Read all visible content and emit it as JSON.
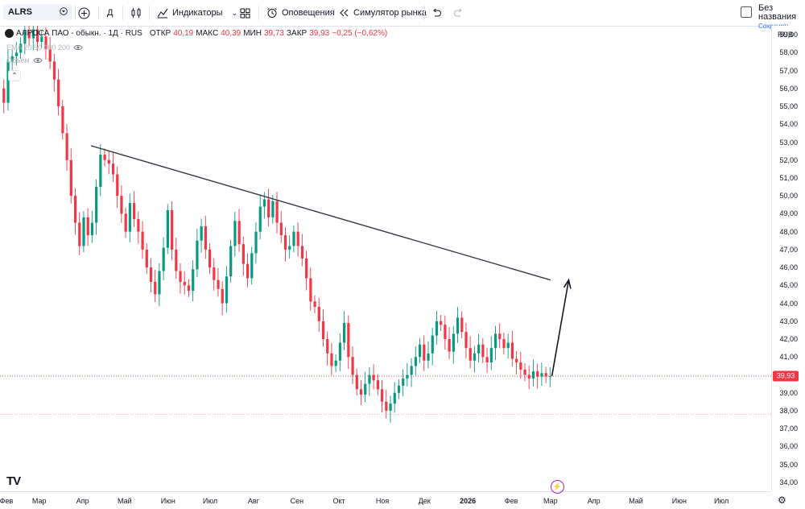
{
  "toolbar": {
    "symbol": "ALRS",
    "interval": "Д",
    "indicators_label": "Индикаторы",
    "alerts_label": "Оповещения",
    "replay_label": "Симулятор рынка",
    "layout_name": "Без названия",
    "save_status": "Сохранить"
  },
  "legend": {
    "title": "АЛРОСА ПАО - обыкн. · 1Д · RUS",
    "open_label": "ОТКР",
    "open": "40,19",
    "high_label": "МАКС",
    "high": "40,39",
    "low_label": "МИН",
    "low": "39,73",
    "close_label": "ЗАКР",
    "close": "39,93",
    "change": "−0,25 (−0,62%)",
    "ema_label": "EMA 20 50 100 200",
    "volume_label": "Объём"
  },
  "colors": {
    "up": "#089981",
    "down": "#f23645",
    "trendline": "#363a45",
    "price_line": "#f23645"
  },
  "chart_data": {
    "type": "candlestick",
    "currency": "RUB",
    "last_price": 39.93,
    "last_price_label": "39,93",
    "ylim": [
      33.5,
      59.5
    ],
    "y_ticks": [
      "34,00",
      "35,00",
      "36,00",
      "37,00",
      "38,00",
      "39,00",
      "40,00",
      "41,00",
      "42,00",
      "43,00",
      "44,00",
      "45,00",
      "46,00",
      "47,00",
      "48,00",
      "49,00",
      "50,00",
      "51,00",
      "52,00",
      "53,00",
      "54,00",
      "55,00",
      "56,00",
      "57,00",
      "58,00",
      "59,00"
    ],
    "x_ticks": [
      "Фев",
      "Мар",
      "Апр",
      "Май",
      "Июн",
      "Июл",
      "Авг",
      "Сен",
      "Окт",
      "Ноя",
      "Дек",
      "2026",
      "Фев",
      "Мар",
      "Апр",
      "Май",
      "Июн",
      "Июл"
    ],
    "x_ticks_bold": [
      false,
      false,
      false,
      false,
      false,
      false,
      false,
      false,
      false,
      false,
      false,
      true,
      false,
      false,
      false,
      false,
      false,
      false
    ],
    "x_tick_days": [
      0,
      28,
      59,
      89,
      120,
      150,
      181,
      212,
      242,
      273,
      303,
      334,
      365,
      393,
      424,
      454,
      485,
      515
    ],
    "last_day": 393,
    "close_series": [
      [
        0,
        56.0
      ],
      [
        3,
        55.2
      ],
      [
        6,
        57.5
      ],
      [
        9,
        57.8
      ],
      [
        12,
        58.0
      ],
      [
        15,
        58.5
      ],
      [
        18,
        59.2
      ],
      [
        21,
        58.8
      ],
      [
        24,
        59.3
      ],
      [
        27,
        58.6
      ],
      [
        30,
        58.9
      ],
      [
        33,
        58.2
      ],
      [
        36,
        57.5
      ],
      [
        39,
        56.5
      ],
      [
        42,
        55.0
      ],
      [
        45,
        53.5
      ],
      [
        48,
        52.0
      ],
      [
        51,
        50.0
      ],
      [
        54,
        48.5
      ],
      [
        57,
        47.2
      ],
      [
        60,
        48.8
      ],
      [
        63,
        47.8
      ],
      [
        66,
        48.5
      ],
      [
        69,
        50.5
      ],
      [
        72,
        52.3
      ],
      [
        75,
        52.0
      ],
      [
        78,
        51.8
      ],
      [
        81,
        51.2
      ],
      [
        84,
        50.0
      ],
      [
        87,
        49.0
      ],
      [
        90,
        48.0
      ],
      [
        93,
        49.6
      ],
      [
        96,
        48.7
      ],
      [
        99,
        48.0
      ],
      [
        102,
        47.0
      ],
      [
        105,
        46.0
      ],
      [
        108,
        45.2
      ],
      [
        111,
        44.5
      ],
      [
        114,
        45.8
      ],
      [
        117,
        47.1
      ],
      [
        120,
        49.2
      ],
      [
        123,
        47.0
      ],
      [
        126,
        45.8
      ],
      [
        129,
        45.2
      ],
      [
        132,
        45.0
      ],
      [
        135,
        44.7
      ],
      [
        138,
        45.9
      ],
      [
        141,
        47.5
      ],
      [
        144,
        48.3
      ],
      [
        147,
        47.0
      ],
      [
        150,
        46.0
      ],
      [
        153,
        45.3
      ],
      [
        156,
        44.8
      ],
      [
        159,
        44.0
      ],
      [
        162,
        45.5
      ],
      [
        165,
        47.2
      ],
      [
        168,
        48.6
      ],
      [
        171,
        47.3
      ],
      [
        174,
        46.2
      ],
      [
        177,
        45.4
      ],
      [
        180,
        46.8
      ],
      [
        183,
        48.0
      ],
      [
        186,
        49.4
      ],
      [
        189,
        49.8
      ],
      [
        192,
        48.8
      ],
      [
        195,
        49.7
      ],
      [
        198,
        48.5
      ],
      [
        201,
        47.8
      ],
      [
        204,
        47.0
      ],
      [
        207,
        47.2
      ],
      [
        210,
        48.0
      ],
      [
        213,
        47.2
      ],
      [
        216,
        46.5
      ],
      [
        219,
        45.4
      ],
      [
        222,
        44.1
      ],
      [
        225,
        43.8
      ],
      [
        228,
        43.0
      ],
      [
        231,
        42.0
      ],
      [
        234,
        41.2
      ],
      [
        237,
        40.5
      ],
      [
        240,
        40.8
      ],
      [
        243,
        41.8
      ],
      [
        246,
        42.9
      ],
      [
        249,
        41.0
      ],
      [
        252,
        40.0
      ],
      [
        255,
        39.2
      ],
      [
        258,
        38.9
      ],
      [
        261,
        39.5
      ],
      [
        264,
        40.0
      ],
      [
        267,
        39.7
      ],
      [
        270,
        39.2
      ],
      [
        273,
        38.5
      ],
      [
        276,
        38.0
      ],
      [
        279,
        38.4
      ],
      [
        282,
        39.0
      ],
      [
        285,
        39.4
      ],
      [
        288,
        39.8
      ],
      [
        291,
        40.0
      ],
      [
        294,
        40.5
      ],
      [
        297,
        41.0
      ],
      [
        300,
        41.7
      ],
      [
        303,
        40.8
      ],
      [
        306,
        41.2
      ],
      [
        309,
        42.2
      ],
      [
        312,
        43.0
      ],
      [
        315,
        42.8
      ],
      [
        318,
        42.0
      ],
      [
        321,
        41.3
      ],
      [
        324,
        42.3
      ],
      [
        327,
        43.2
      ],
      [
        330,
        42.4
      ],
      [
        333,
        41.5
      ],
      [
        336,
        40.8
      ],
      [
        339,
        41.2
      ],
      [
        342,
        41.7
      ],
      [
        345,
        41.0
      ],
      [
        348,
        40.7
      ],
      [
        351,
        41.5
      ],
      [
        354,
        42.3
      ],
      [
        357,
        42.0
      ],
      [
        360,
        41.5
      ],
      [
        363,
        41.8
      ],
      [
        366,
        40.9
      ],
      [
        369,
        40.7
      ],
      [
        372,
        40.3
      ],
      [
        375,
        40.0
      ],
      [
        378,
        39.8
      ],
      [
        381,
        40.2
      ],
      [
        384,
        39.9
      ],
      [
        387,
        40.1
      ],
      [
        390,
        39.9
      ],
      [
        393,
        39.93
      ]
    ],
    "lines": [
      {
        "name": "",
        "from": [
          65,
          52.8
        ],
        "to": [
          393,
          45.3
        ]
      }
    ],
    "arrow": {
      "from": [
        394,
        39.93
      ],
      "to": [
        406,
        45.3
      ]
    },
    "horizontal_levels": [
      37.8
    ]
  }
}
